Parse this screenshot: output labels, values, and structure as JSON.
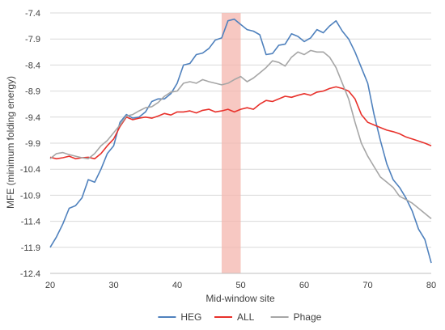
{
  "chart_data": {
    "type": "line",
    "xlabel": "Mid-window site",
    "ylabel": "MFE (minimum folding energy)",
    "xlim": [
      20,
      80
    ],
    "ylim": [
      -12.4,
      -7.4
    ],
    "x_ticks": [
      "20",
      "30",
      "40",
      "50",
      "60",
      "70",
      "80"
    ],
    "y_ticks": [
      "-7.4",
      "-7.9",
      "-8.4",
      "-8.9",
      "-9.4",
      "-9.9",
      "-10.4",
      "-10.9",
      "-11.4",
      "-11.9",
      "-12.4"
    ],
    "grid": "horizontal",
    "legend_position": "bottom",
    "highlight_band": {
      "x_range": [
        47,
        50
      ],
      "color": "#f4b6ad"
    },
    "x": [
      20,
      21,
      22,
      23,
      24,
      25,
      26,
      27,
      28,
      29,
      30,
      31,
      32,
      33,
      34,
      35,
      36,
      37,
      38,
      39,
      40,
      41,
      42,
      43,
      44,
      45,
      46,
      47,
      48,
      49,
      50,
      51,
      52,
      53,
      54,
      55,
      56,
      57,
      58,
      59,
      60,
      61,
      62,
      63,
      64,
      65,
      66,
      67,
      68,
      69,
      70,
      71,
      72,
      73,
      74,
      75,
      76,
      77,
      78,
      79,
      80
    ],
    "series": [
      {
        "name": "HEG",
        "color": "#4f81bd",
        "values": [
          -11.9,
          -11.7,
          -11.45,
          -11.15,
          -11.1,
          -10.95,
          -10.6,
          -10.65,
          -10.4,
          -10.1,
          -9.95,
          -9.5,
          -9.35,
          -9.42,
          -9.4,
          -9.3,
          -9.1,
          -9.05,
          -9.05,
          -8.95,
          -8.75,
          -8.4,
          -8.37,
          -8.2,
          -8.17,
          -8.08,
          -7.92,
          -7.88,
          -7.55,
          -7.52,
          -7.62,
          -7.72,
          -7.75,
          -7.82,
          -8.2,
          -8.18,
          -8.02,
          -8.0,
          -7.8,
          -7.85,
          -7.95,
          -7.88,
          -7.72,
          -7.78,
          -7.65,
          -7.55,
          -7.75,
          -7.9,
          -8.15,
          -8.45,
          -8.75,
          -9.35,
          -9.85,
          -10.3,
          -10.6,
          -10.75,
          -10.95,
          -11.2,
          -11.55,
          -11.75,
          -12.2
        ]
      },
      {
        "name": "ALL",
        "color": "#e8312b",
        "values": [
          -10.17,
          -10.2,
          -10.18,
          -10.15,
          -10.2,
          -10.18,
          -10.17,
          -10.2,
          -10.1,
          -9.95,
          -9.82,
          -9.58,
          -9.4,
          -9.45,
          -9.42,
          -9.4,
          -9.42,
          -9.38,
          -9.33,
          -9.36,
          -9.3,
          -9.3,
          -9.28,
          -9.32,
          -9.27,
          -9.25,
          -9.3,
          -9.28,
          -9.25,
          -9.3,
          -9.25,
          -9.22,
          -9.25,
          -9.15,
          -9.08,
          -9.1,
          -9.05,
          -9.0,
          -9.02,
          -8.98,
          -8.95,
          -8.98,
          -8.92,
          -8.9,
          -8.85,
          -8.82,
          -8.85,
          -8.9,
          -9.05,
          -9.35,
          -9.5,
          -9.55,
          -9.6,
          -9.65,
          -9.68,
          -9.72,
          -9.78,
          -9.82,
          -9.86,
          -9.9,
          -9.95
        ]
      },
      {
        "name": "Phage",
        "color": "#a6a6a6",
        "values": [
          -10.2,
          -10.1,
          -10.08,
          -10.12,
          -10.15,
          -10.18,
          -10.2,
          -10.1,
          -9.95,
          -9.85,
          -9.7,
          -9.55,
          -9.38,
          -9.35,
          -9.28,
          -9.22,
          -9.2,
          -9.12,
          -9.0,
          -8.92,
          -8.9,
          -8.75,
          -8.72,
          -8.75,
          -8.68,
          -8.72,
          -8.75,
          -8.78,
          -8.75,
          -8.68,
          -8.62,
          -8.72,
          -8.65,
          -8.55,
          -8.45,
          -8.32,
          -8.35,
          -8.42,
          -8.25,
          -8.15,
          -8.2,
          -8.12,
          -8.15,
          -8.15,
          -8.25,
          -8.45,
          -8.75,
          -9.05,
          -9.5,
          -9.9,
          -10.15,
          -10.35,
          -10.55,
          -10.65,
          -10.75,
          -10.92,
          -10.98,
          -11.05,
          -11.15,
          -11.25,
          -11.35
        ]
      }
    ]
  }
}
